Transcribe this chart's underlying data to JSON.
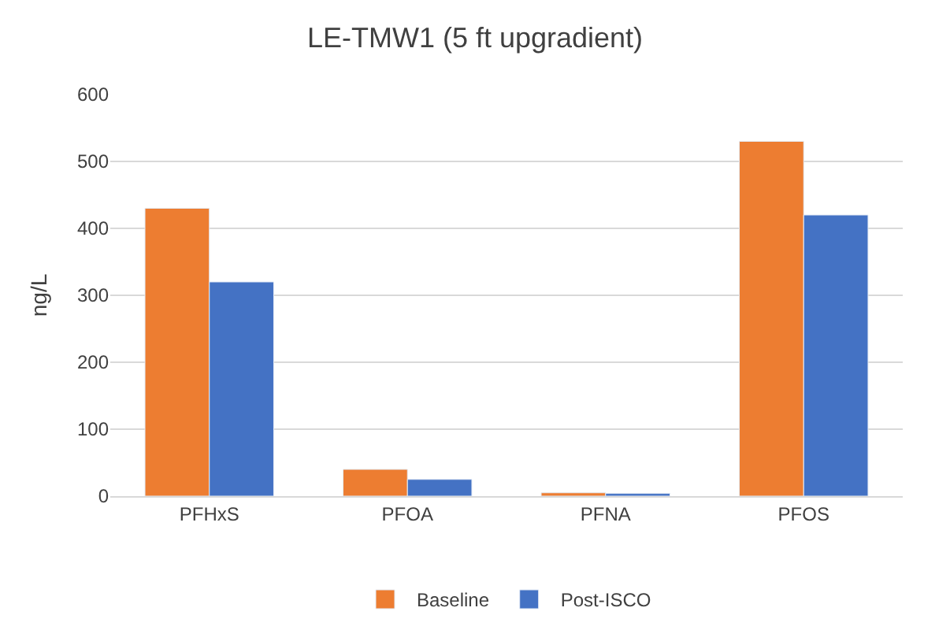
{
  "chart_data": {
    "type": "bar",
    "title": "LE-TMW1 (5 ft upgradient)",
    "ylabel": "ng/L",
    "categories": [
      "PFHxS",
      "PFOA",
      "PFNA",
      "PFOS"
    ],
    "series": [
      {
        "name": "Baseline",
        "color": "#ed7d31",
        "values": [
          430,
          40,
          5,
          530
        ]
      },
      {
        "name": "Post-ISCO",
        "color": "#4472c4",
        "values": [
          320,
          25,
          4,
          420
        ]
      }
    ],
    "ylim": [
      0,
      600
    ],
    "yticks": [
      0,
      100,
      200,
      300,
      400,
      500,
      600
    ],
    "grid": "y",
    "legend": "bottom"
  }
}
